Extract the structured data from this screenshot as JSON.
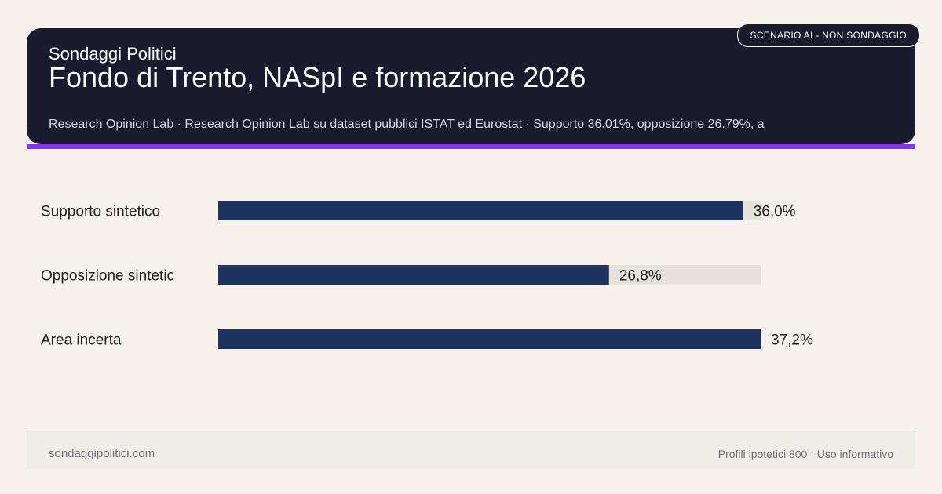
{
  "header": {
    "brand": "Sondaggi Politici",
    "title": "Fondo di Trento, NASpI e formazione 2026",
    "subtitle": "Research Opinion Lab · Research Opinion Lab su dataset pubblici ISTAT ed Eurostat · Supporto 36.01%, opposizione 26.79%, a",
    "badge": "SCENARIO AI - NON SONDAGGIO"
  },
  "chart_data": {
    "type": "bar",
    "orientation": "horizontal",
    "categories": [
      "Supporto sintetico",
      "Opposizione sintetic",
      "Area incerta"
    ],
    "values": [
      36.0,
      26.8,
      37.2
    ],
    "value_labels": [
      "36,0%",
      "26,8%",
      "37,2%"
    ],
    "xlim": [
      0,
      37.2
    ],
    "colors": {
      "bar": "#1d3461",
      "track": "#e6e1da",
      "text": "#222222"
    },
    "grid": false
  },
  "footer": {
    "site": "sondaggipolitici.com",
    "note": "Profili ipotetici 800 · Uso informativo"
  }
}
